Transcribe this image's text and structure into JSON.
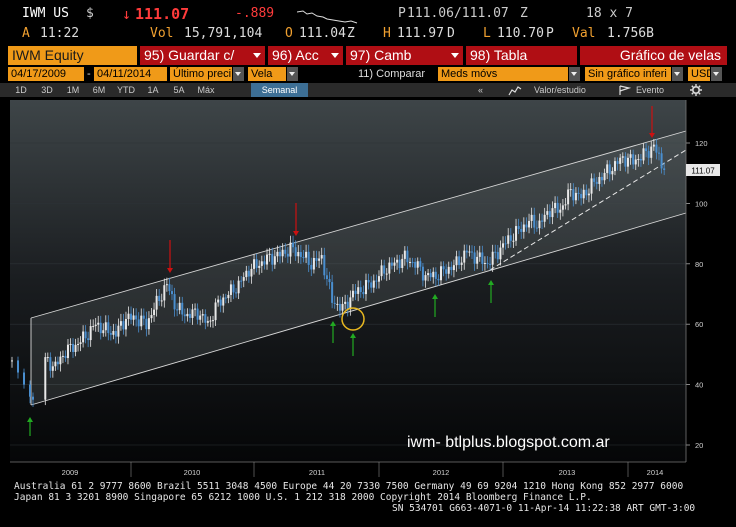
{
  "quote": {
    "ticker": "IWM US",
    "currency_icon": "$",
    "direction_arrow": "↓",
    "last_price": "111.07",
    "change": "-.889",
    "bid_label": "P",
    "bid_ask": "111.06/111.07",
    "bid_suffix": "Z",
    "size": "18 x 7",
    "time_prefix": "A",
    "time": "11:22",
    "vol_label": "Vol",
    "volume": "15,791,104",
    "open_label": "O",
    "open": "111.04",
    "open_suffix": "Z",
    "high_label": "H",
    "high": "111.97",
    "high_suffix": "D",
    "low_label": "L",
    "low": "110.70",
    "low_suffix": "P",
    "val_label": "Val",
    "value": "1.756B"
  },
  "toolbar": {
    "security": "IWM Equity",
    "save": "95) Guardar c/",
    "actions": "96) Acc",
    "change": "97) Camb",
    "table": "98) Tabla",
    "chart_name": "Gráfico de velas"
  },
  "settings": {
    "start_date": "04/17/2009",
    "date_sep": "-",
    "end_date": "04/11/2014",
    "field": "Último preci",
    "style": "Vela",
    "compare": "11) Comparar",
    "moving_avg": "Meds móvs",
    "secondary": "Sin gráfico inferi",
    "ccy": "USD"
  },
  "periods": [
    "1D",
    "3D",
    "1M",
    "6M",
    "YTD",
    "1A",
    "5A",
    "Máx"
  ],
  "active_period": "Semanal",
  "tools": {
    "back": "«",
    "value_study": "Valor/estudio",
    "event": "Evento"
  },
  "chart_data": {
    "type": "candlestick",
    "title": "",
    "xlabel": "",
    "ylabel": "",
    "x_ticks": [
      "2009",
      "2010",
      "2011",
      "2012",
      "2013",
      "2014"
    ],
    "y_ticks": [
      20,
      40,
      60,
      80,
      100,
      120
    ],
    "ylim": [
      15,
      130
    ],
    "last_price_label": "111.07",
    "watermark": "iwm- btlplus.blogspot.com.ar",
    "weekly_close": [
      {
        "d": "2009-04",
        "v": 48
      },
      {
        "d": "2009-05",
        "v": 46
      },
      {
        "d": "2009-06",
        "v": 51
      },
      {
        "d": "2009-07",
        "v": 53
      },
      {
        "d": "2009-08",
        "v": 56
      },
      {
        "d": "2009-09",
        "v": 60
      },
      {
        "d": "2009-10",
        "v": 58
      },
      {
        "d": "2009-11",
        "v": 57
      },
      {
        "d": "2009-12",
        "v": 62
      },
      {
        "d": "2010-01",
        "v": 62
      },
      {
        "d": "2010-02",
        "v": 60
      },
      {
        "d": "2010-03",
        "v": 67
      },
      {
        "d": "2010-04",
        "v": 73
      },
      {
        "d": "2010-05",
        "v": 65
      },
      {
        "d": "2010-06",
        "v": 63
      },
      {
        "d": "2010-07",
        "v": 64
      },
      {
        "d": "2010-08",
        "v": 60
      },
      {
        "d": "2010-09",
        "v": 67
      },
      {
        "d": "2010-10",
        "v": 70
      },
      {
        "d": "2010-11",
        "v": 73
      },
      {
        "d": "2010-12",
        "v": 78
      },
      {
        "d": "2011-01",
        "v": 80
      },
      {
        "d": "2011-02",
        "v": 82
      },
      {
        "d": "2011-03",
        "v": 83
      },
      {
        "d": "2011-04",
        "v": 85
      },
      {
        "d": "2011-05",
        "v": 83
      },
      {
        "d": "2011-06",
        "v": 80
      },
      {
        "d": "2011-07",
        "v": 82
      },
      {
        "d": "2011-08",
        "v": 68
      },
      {
        "d": "2011-09",
        "v": 65
      },
      {
        "d": "2011-10",
        "v": 70
      },
      {
        "d": "2011-11",
        "v": 72
      },
      {
        "d": "2011-12",
        "v": 74
      },
      {
        "d": "2012-01",
        "v": 78
      },
      {
        "d": "2012-02",
        "v": 80
      },
      {
        "d": "2012-03",
        "v": 82
      },
      {
        "d": "2012-04",
        "v": 80
      },
      {
        "d": "2012-05",
        "v": 76
      },
      {
        "d": "2012-06",
        "v": 76
      },
      {
        "d": "2012-07",
        "v": 78
      },
      {
        "d": "2012-08",
        "v": 80
      },
      {
        "d": "2012-09",
        "v": 84
      },
      {
        "d": "2012-10",
        "v": 82
      },
      {
        "d": "2012-11",
        "v": 80
      },
      {
        "d": "2012-12",
        "v": 84
      },
      {
        "d": "2013-01",
        "v": 88
      },
      {
        "d": "2013-02",
        "v": 91
      },
      {
        "d": "2013-03",
        "v": 94
      },
      {
        "d": "2013-04",
        "v": 93
      },
      {
        "d": "2013-05",
        "v": 98
      },
      {
        "d": "2013-06",
        "v": 98
      },
      {
        "d": "2013-07",
        "v": 104
      },
      {
        "d": "2013-08",
        "v": 102
      },
      {
        "d": "2013-09",
        "v": 106
      },
      {
        "d": "2013-10",
        "v": 109
      },
      {
        "d": "2013-11",
        "v": 112
      },
      {
        "d": "2013-12",
        "v": 115
      },
      {
        "d": "2014-01",
        "v": 114
      },
      {
        "d": "2014-02",
        "v": 116
      },
      {
        "d": "2014-03",
        "v": 119
      },
      {
        "d": "2014-04",
        "v": 111.07
      }
    ]
  },
  "footer": {
    "line1": "Australia 61 2 9777 8600 Brazil 5511 3048 4500 Europe 44 20 7330 7500 Germany 49 69 9204 1210 Hong Kong 852 2977 6000",
    "line2": "Japan 81 3 3201 8900       Singapore 65 6212 1000       U.S. 1 212 318 2000        Copyright 2014 Bloomberg Finance L.P.",
    "line3": "SN 534701 G663-4071-0 11-Apr-14 11:22:38 ART  GMT-3:00"
  },
  "colors": {
    "accent_orange": "#f09a18",
    "function_red": "#b00e14",
    "up_candle": "#e8e8e8",
    "down_candle": "#4a8fd0",
    "bear_arrow": "#cc1111",
    "bull_arrow": "#22aa22",
    "highlight_circle": "#e8b820"
  }
}
